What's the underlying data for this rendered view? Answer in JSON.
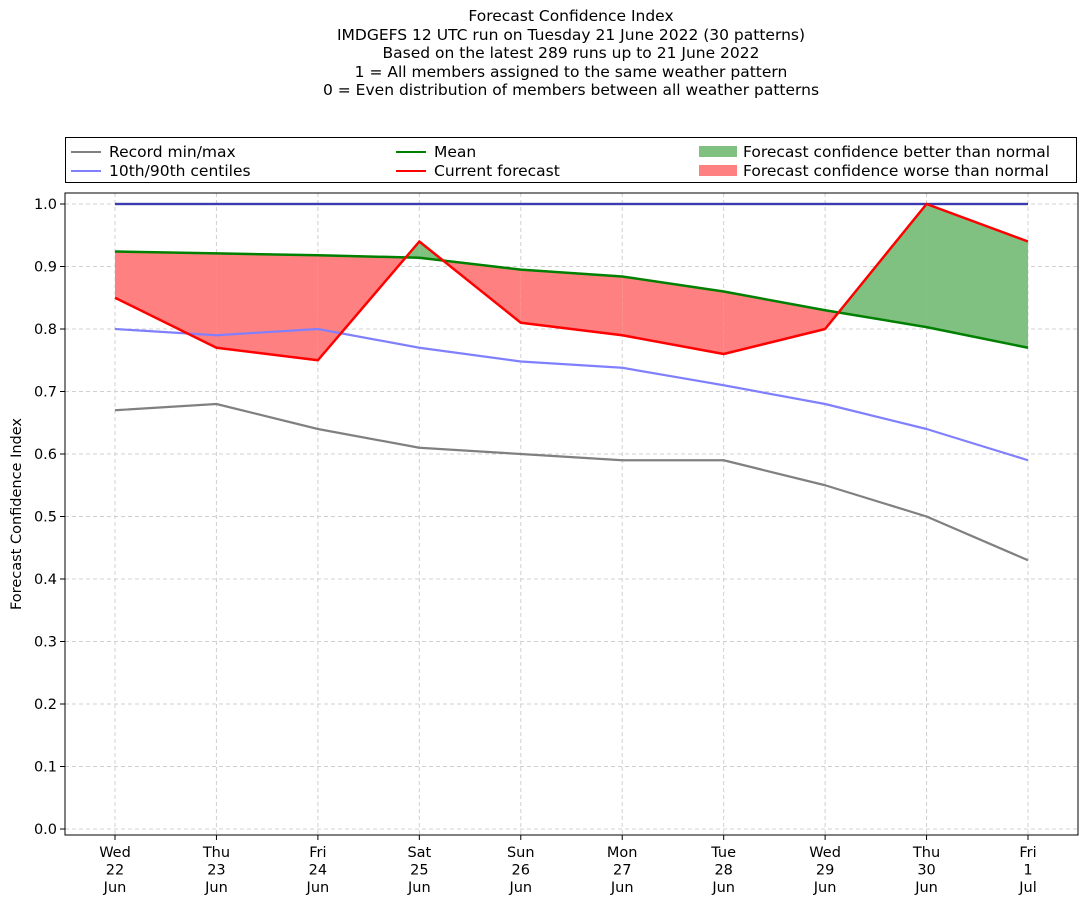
{
  "title_lines": [
    "Forecast Confidence Index",
    "IMDGEFS 12 UTC run on Tuesday 21 June 2022 (30 patterns)",
    "Based on the latest 289 runs up to 21 June 2022",
    "1 = All members assigned to the same weather pattern",
    "0 = Even distribution of members between all weather patterns"
  ],
  "legend": {
    "record": "Record min/max",
    "centiles": "10th/90th centiles",
    "mean": "Mean",
    "current": "Current forecast",
    "better": "Forecast confidence better than normal",
    "worse": "Forecast confidence worse than normal"
  },
  "colors": {
    "record": "#808080",
    "centiles": "#8080ff",
    "centiles_upper": "#3b3bb3",
    "mean": "#008000",
    "current": "#ff0000",
    "better": "#80c080",
    "worse": "#ff8080"
  },
  "chart_data": {
    "type": "line",
    "ylabel": "Forecast Confidence Index",
    "xlabel": "",
    "ylim": [
      0.0,
      1.0
    ],
    "yticks": [
      "0.0",
      "0.1",
      "0.2",
      "0.3",
      "0.4",
      "0.5",
      "0.6",
      "0.7",
      "0.8",
      "0.9",
      "1.0"
    ],
    "grid": true,
    "legend_position": "top",
    "categories": [
      [
        "Wed",
        "22",
        "Jun"
      ],
      [
        "Thu",
        "23",
        "Jun"
      ],
      [
        "Fri",
        "24",
        "Jun"
      ],
      [
        "Sat",
        "25",
        "Jun"
      ],
      [
        "Sun",
        "26",
        "Jun"
      ],
      [
        "Mon",
        "27",
        "Jun"
      ],
      [
        "Tue",
        "28",
        "Jun"
      ],
      [
        "Wed",
        "29",
        "Jun"
      ],
      [
        "Thu",
        "30",
        "Jun"
      ],
      [
        "Fri",
        "1",
        "Jul"
      ]
    ],
    "series": [
      {
        "name": "Record min/max",
        "role": "record_min",
        "values": [
          0.67,
          0.68,
          0.64,
          0.61,
          0.6,
          0.59,
          0.59,
          0.55,
          0.5,
          0.43
        ]
      },
      {
        "name": "Record min/max",
        "role": "record_max",
        "values": [
          1.0,
          1.0,
          1.0,
          1.0,
          1.0,
          1.0,
          1.0,
          1.0,
          1.0,
          1.0
        ]
      },
      {
        "name": "10th/90th centiles",
        "role": "p10",
        "values": [
          0.8,
          0.79,
          0.8,
          0.77,
          0.748,
          0.738,
          0.71,
          0.68,
          0.64,
          0.59
        ]
      },
      {
        "name": "10th/90th centiles",
        "role": "p90",
        "values": [
          1.0,
          1.0,
          1.0,
          1.0,
          1.0,
          1.0,
          1.0,
          1.0,
          1.0,
          1.0
        ]
      },
      {
        "name": "Mean",
        "role": "mean",
        "values": [
          0.924,
          0.921,
          0.918,
          0.914,
          0.895,
          0.884,
          0.86,
          0.83,
          0.803,
          0.77
        ]
      },
      {
        "name": "Current forecast",
        "role": "current",
        "values": [
          0.85,
          0.77,
          0.75,
          0.94,
          0.81,
          0.79,
          0.76,
          0.8,
          1.0,
          0.94
        ]
      }
    ]
  }
}
